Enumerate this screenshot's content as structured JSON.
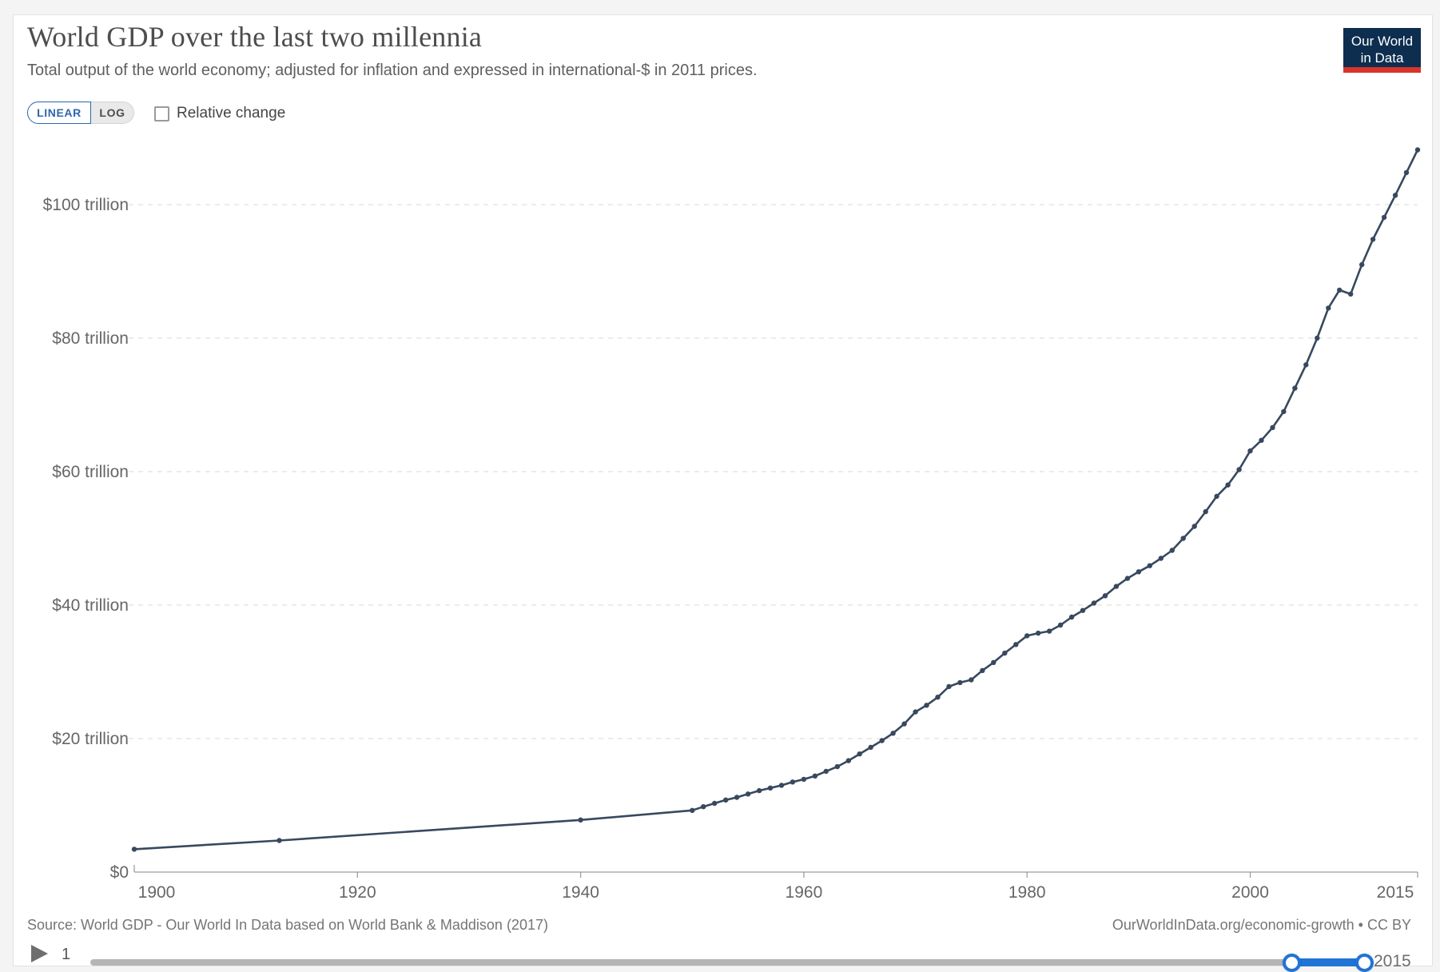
{
  "header": {
    "title": "World GDP over the last two millennia",
    "subtitle": "Total output of the world economy; adjusted for inflation and expressed in international-$ in 2011 prices.",
    "logo": {
      "line1": "Our World",
      "line2": "in Data",
      "bg_color": "#0d2e4f",
      "bar_color": "#d8352a"
    }
  },
  "controls": {
    "linear_label": "LINEAR",
    "log_label": "LOG",
    "active_scale": "LINEAR",
    "relative_change_label": "Relative change",
    "relative_change_checked": false
  },
  "chart_data": {
    "type": "line",
    "title": "World GDP over the last two millennia",
    "series_name": "World GDP",
    "unit": "international-$ in 2011 prices",
    "line_color": "#38495e",
    "grid": "horizontal-dashed",
    "xlim": [
      1900,
      2015
    ],
    "ylim": [
      0,
      110
    ],
    "xticks": [
      {
        "value": 1900,
        "label": "1900"
      },
      {
        "value": 1920,
        "label": "1920"
      },
      {
        "value": 1940,
        "label": "1940"
      },
      {
        "value": 1960,
        "label": "1960"
      },
      {
        "value": 1980,
        "label": "1980"
      },
      {
        "value": 2000,
        "label": "2000"
      },
      {
        "value": 2015,
        "label": "2015"
      }
    ],
    "yticks": [
      {
        "value": 0,
        "label": "$0"
      },
      {
        "value": 20,
        "label": "$20 trillion"
      },
      {
        "value": 40,
        "label": "$40 trillion"
      },
      {
        "value": 60,
        "label": "$60 trillion"
      },
      {
        "value": 80,
        "label": "$80 trillion"
      },
      {
        "value": 100,
        "label": "$100 trillion"
      }
    ],
    "points": [
      [
        1900,
        3.42
      ],
      [
        1913,
        4.73
      ],
      [
        1940,
        7.81
      ],
      [
        1950,
        9.25
      ],
      [
        1951,
        9.8
      ],
      [
        1952,
        10.3
      ],
      [
        1953,
        10.8
      ],
      [
        1954,
        11.2
      ],
      [
        1955,
        11.7
      ],
      [
        1956,
        12.2
      ],
      [
        1957,
        12.6
      ],
      [
        1958,
        13.0
      ],
      [
        1959,
        13.5
      ],
      [
        1960,
        13.9
      ],
      [
        1961,
        14.4
      ],
      [
        1962,
        15.1
      ],
      [
        1963,
        15.8
      ],
      [
        1964,
        16.7
      ],
      [
        1965,
        17.7
      ],
      [
        1966,
        18.7
      ],
      [
        1967,
        19.7
      ],
      [
        1968,
        20.8
      ],
      [
        1969,
        22.2
      ],
      [
        1970,
        24.0
      ],
      [
        1971,
        25.0
      ],
      [
        1972,
        26.2
      ],
      [
        1973,
        27.8
      ],
      [
        1974,
        28.4
      ],
      [
        1975,
        28.8
      ],
      [
        1976,
        30.2
      ],
      [
        1977,
        31.4
      ],
      [
        1978,
        32.8
      ],
      [
        1979,
        34.1
      ],
      [
        1980,
        35.4
      ],
      [
        1981,
        35.8
      ],
      [
        1982,
        36.1
      ],
      [
        1983,
        37.0
      ],
      [
        1984,
        38.2
      ],
      [
        1985,
        39.2
      ],
      [
        1986,
        40.3
      ],
      [
        1987,
        41.4
      ],
      [
        1988,
        42.8
      ],
      [
        1989,
        44.0
      ],
      [
        1990,
        45.0
      ],
      [
        1991,
        45.9
      ],
      [
        1992,
        47.0
      ],
      [
        1993,
        48.2
      ],
      [
        1994,
        50.0
      ],
      [
        1995,
        51.8
      ],
      [
        1996,
        54.0
      ],
      [
        1997,
        56.3
      ],
      [
        1998,
        58.0
      ],
      [
        1999,
        60.3
      ],
      [
        2000,
        63.1
      ],
      [
        2001,
        64.7
      ],
      [
        2002,
        66.6
      ],
      [
        2003,
        69.0
      ],
      [
        2004,
        72.5
      ],
      [
        2005,
        76.0
      ],
      [
        2006,
        80.0
      ],
      [
        2007,
        84.5
      ],
      [
        2008,
        87.2
      ],
      [
        2009,
        86.6
      ],
      [
        2010,
        91.0
      ],
      [
        2011,
        94.8
      ],
      [
        2012,
        98.1
      ],
      [
        2013,
        101.4
      ],
      [
        2014,
        104.8
      ],
      [
        2015,
        108.2
      ]
    ]
  },
  "footer": {
    "source": "Source: World GDP - Our World In Data based on World Bank & Maddison (2017)",
    "attribution": "OurWorldInData.org/economic-growth • CC BY"
  },
  "timeline": {
    "start_label": "1",
    "end_label": "2015",
    "range_min": 1,
    "range_max": 2015,
    "selected_start": 1900,
    "selected_end": 2015,
    "accent_color": "#1f74d6"
  }
}
